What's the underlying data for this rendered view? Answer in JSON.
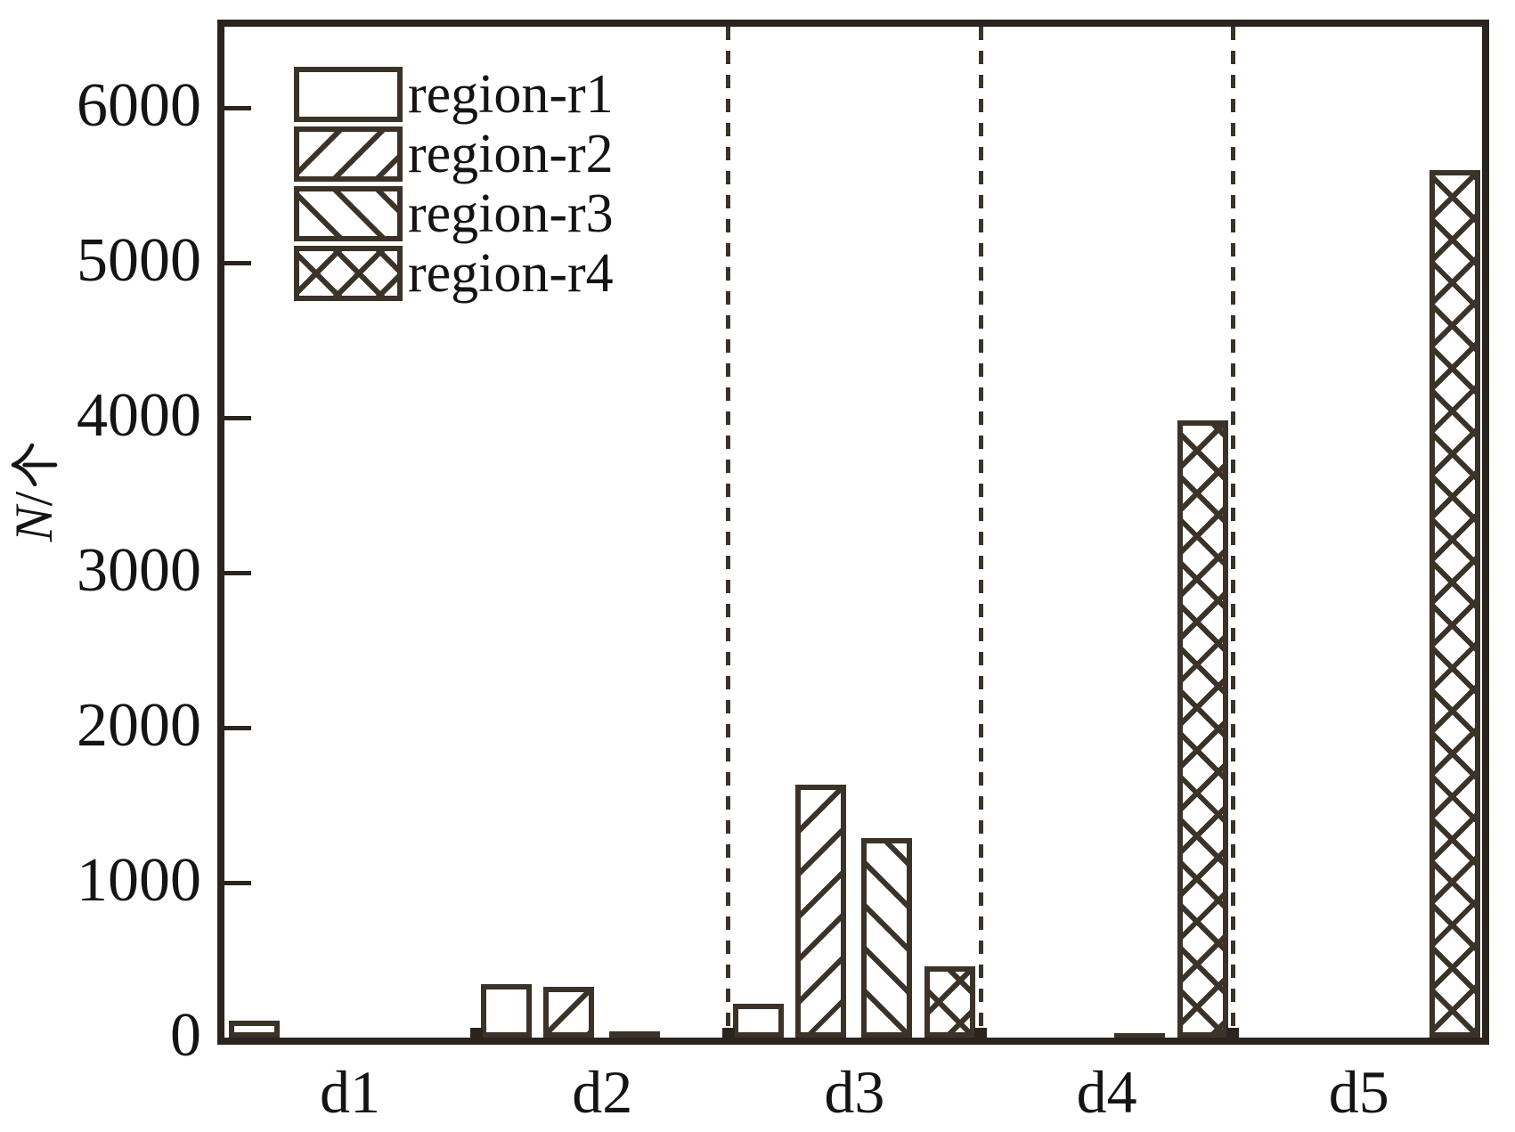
{
  "figure": {
    "background": "#ffffff",
    "ink_color": "#3b3228",
    "frame_color": "#2b241e",
    "text_color": "#141414",
    "y_axis_title": "N/个",
    "y_axis_title_italic_part": "N",
    "y_axis_title_separator": "/",
    "y_axis_title_unit_glyph": "个"
  },
  "chart_data": {
    "type": "bar",
    "title": "",
    "xlabel": "",
    "ylabel": "N/个",
    "categories": [
      "d1",
      "d2",
      "d3",
      "d4",
      "d5"
    ],
    "series": [
      {
        "name": "region-r1",
        "pattern": "none",
        "values": [
          110,
          345,
          220,
          0,
          0
        ]
      },
      {
        "name": "region-r2",
        "pattern": "diagonal-forward",
        "values": [
          0,
          330,
          1630,
          0,
          0
        ]
      },
      {
        "name": "region-r3",
        "pattern": "diagonal-backward",
        "values": [
          0,
          40,
          1290,
          25,
          0
        ]
      },
      {
        "name": "region-r4",
        "pattern": "crosshatch",
        "values": [
          0,
          0,
          460,
          3980,
          5600
        ]
      }
    ],
    "ylim": [
      0,
      6500
    ],
    "yticks": [
      0,
      1000,
      2000,
      3000,
      4000,
      5000,
      6000
    ],
    "grid": false,
    "legend_position": "top-left",
    "separators_after_categories": [
      "d2",
      "d3",
      "d4"
    ],
    "group_boundary_ticks_after_categories": [
      "d1",
      "d2",
      "d3",
      "d4"
    ]
  }
}
